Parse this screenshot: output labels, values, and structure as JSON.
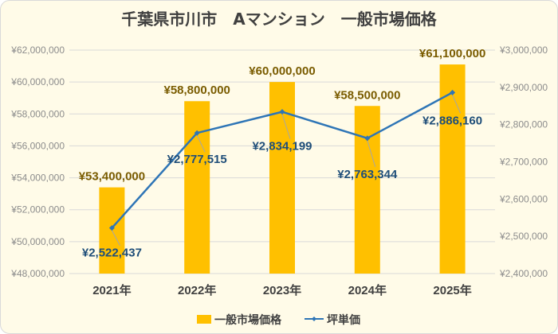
{
  "colors": {
    "bar": "#ffc000",
    "line": "#2e75b6",
    "grid": "#d9d9d9",
    "leader": "#a6a6a6"
  },
  "chart_data": {
    "type": "bar",
    "title": "千葉県市川市　Aマンション　一般市場価格",
    "categories": [
      "2021年",
      "2022年",
      "2023年",
      "2024年",
      "2025年"
    ],
    "series": [
      {
        "name": "一般市場価格",
        "kind": "bar",
        "axis": "left",
        "values": [
          53400000,
          58800000,
          60000000,
          58500000,
          61100000
        ],
        "labels": [
          "¥53,400,000",
          "¥58,800,000",
          "¥60,000,000",
          "¥58,500,000",
          "¥61,100,000"
        ]
      },
      {
        "name": "坪単価",
        "kind": "line",
        "axis": "right",
        "values": [
          2522437,
          2777515,
          2834199,
          2763344,
          2886160
        ],
        "labels": [
          "¥2,522,437",
          "¥2,777,515",
          "¥2,834,199",
          "¥2,763,344",
          "¥2,886,160"
        ]
      }
    ],
    "y_left": {
      "min": 48000000,
      "max": 62000000,
      "ticks": [
        "¥48,000,000",
        "¥50,000,000",
        "¥52,000,000",
        "¥54,000,000",
        "¥56,000,000",
        "¥58,000,000",
        "¥60,000,000",
        "¥62,000,000"
      ]
    },
    "y_right": {
      "min": 2400000,
      "max": 3000000,
      "ticks": [
        "¥2,400,000",
        "¥2,500,000",
        "¥2,600,000",
        "¥2,700,000",
        "¥2,800,000",
        "¥2,900,000",
        "¥3,000,000"
      ]
    },
    "grid": true,
    "legend": "bottom"
  }
}
